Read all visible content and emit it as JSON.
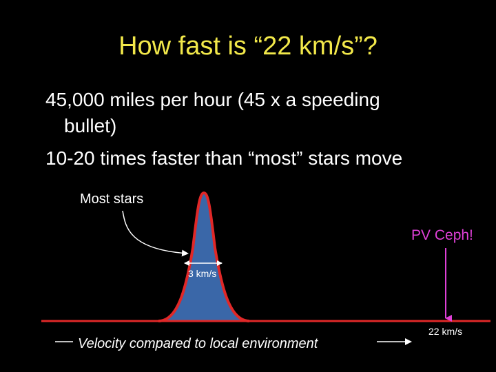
{
  "slide": {
    "title": "How fast is “22 km/s”?",
    "bullets": [
      "45,000 miles per hour (45 x a speeding",
      "bullet)",
      "10-20 times faster than “most” stars move"
    ]
  },
  "figure": {
    "most_stars_label": "Most stars",
    "pv_ceph_label": "PV Ceph!",
    "width_label": "3 km/s",
    "pv_speed_label": "22 km/s",
    "xaxis_label": "Velocity compared to local environment"
  },
  "colors": {
    "background": "#000000",
    "title": "#f2e84a",
    "text": "#ffffff",
    "curve_fill": "#3a67a8",
    "curve_edge": "#e02828",
    "baseline": "#e02828",
    "pv_ceph": "#e040d8"
  }
}
